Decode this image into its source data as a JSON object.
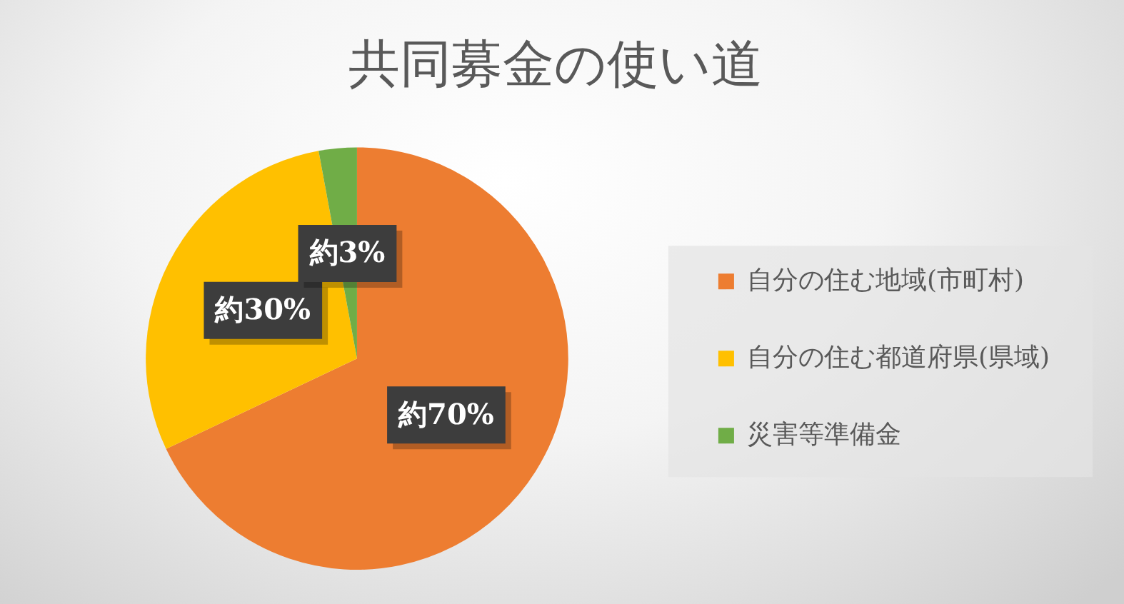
{
  "chart_data": {
    "type": "pie",
    "title": "共同募金の使い道",
    "categories": [
      "自分の住む地域(市町村)",
      "自分の住む都道府県(県域)",
      "災害等準備金"
    ],
    "values": [
      70,
      30,
      3
    ],
    "colors": [
      "#ed7d31",
      "#ffc000",
      "#70ad47"
    ],
    "value_labels": [
      "約70%",
      "約30%",
      "約3%"
    ],
    "legend": "right"
  }
}
